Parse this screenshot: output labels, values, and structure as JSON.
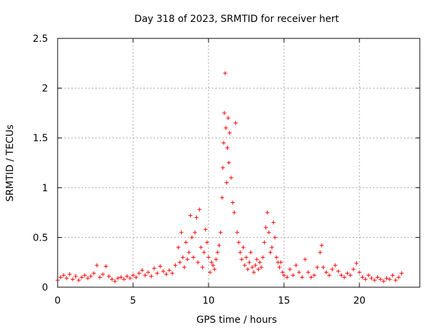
{
  "chart_data": {
    "type": "scatter",
    "title": "Day 318 of 2023, SRMTID for receiver hert",
    "xlabel": "GPS time / hours",
    "ylabel": "SRMTID / TECUs",
    "xlim": [
      0,
      24
    ],
    "ylim": [
      0,
      2.5
    ],
    "xticks": [
      0,
      5,
      10,
      15,
      20
    ],
    "yticks": [
      0,
      0.5,
      1,
      1.5,
      2,
      2.5
    ],
    "xtick_labels": [
      "0",
      "5",
      "10",
      "15",
      "20"
    ],
    "ytick_labels": [
      "0",
      "0.5",
      "1",
      "1.5",
      "2",
      "2.5"
    ],
    "grid": true,
    "marker": "+",
    "series_color": "#ff0000",
    "series": [
      {
        "name": "SRMTID",
        "points": [
          [
            0.0,
            0.07
          ],
          [
            0.2,
            0.1
          ],
          [
            0.4,
            0.12
          ],
          [
            0.6,
            0.09
          ],
          [
            0.8,
            0.13
          ],
          [
            1.0,
            0.08
          ],
          [
            1.2,
            0.11
          ],
          [
            1.4,
            0.07
          ],
          [
            1.6,
            0.1
          ],
          [
            1.8,
            0.12
          ],
          [
            2.0,
            0.09
          ],
          [
            2.2,
            0.11
          ],
          [
            2.4,
            0.14
          ],
          [
            2.6,
            0.22
          ],
          [
            2.8,
            0.1
          ],
          [
            3.0,
            0.13
          ],
          [
            3.2,
            0.21
          ],
          [
            3.4,
            0.11
          ],
          [
            3.6,
            0.08
          ],
          [
            3.8,
            0.06
          ],
          [
            4.0,
            0.09
          ],
          [
            4.2,
            0.1
          ],
          [
            4.4,
            0.08
          ],
          [
            4.6,
            0.11
          ],
          [
            4.8,
            0.09
          ],
          [
            5.0,
            0.12
          ],
          [
            5.2,
            0.1
          ],
          [
            5.4,
            0.14
          ],
          [
            5.6,
            0.17
          ],
          [
            5.8,
            0.12
          ],
          [
            6.0,
            0.15
          ],
          [
            6.2,
            0.11
          ],
          [
            6.4,
            0.19
          ],
          [
            6.6,
            0.14
          ],
          [
            6.8,
            0.21
          ],
          [
            7.0,
            0.16
          ],
          [
            7.2,
            0.13
          ],
          [
            7.4,
            0.17
          ],
          [
            7.6,
            0.14
          ],
          [
            7.8,
            0.22
          ],
          [
            8.0,
            0.4
          ],
          [
            8.1,
            0.25
          ],
          [
            8.2,
            0.55
          ],
          [
            8.3,
            0.3
          ],
          [
            8.4,
            0.2
          ],
          [
            8.5,
            0.45
          ],
          [
            8.6,
            0.28
          ],
          [
            8.7,
            0.35
          ],
          [
            8.8,
            0.72
          ],
          [
            8.9,
            0.5
          ],
          [
            9.0,
            0.3
          ],
          [
            9.1,
            0.55
          ],
          [
            9.2,
            0.7
          ],
          [
            9.3,
            0.25
          ],
          [
            9.4,
            0.78
          ],
          [
            9.5,
            0.4
          ],
          [
            9.6,
            0.2
          ],
          [
            9.7,
            0.35
          ],
          [
            9.8,
            0.58
          ],
          [
            9.9,
            0.45
          ],
          [
            10.0,
            0.3
          ],
          [
            10.1,
            0.15
          ],
          [
            10.2,
            0.25
          ],
          [
            10.3,
            0.22
          ],
          [
            10.4,
            0.18
          ],
          [
            10.5,
            0.28
          ],
          [
            10.6,
            0.35
          ],
          [
            10.7,
            0.42
          ],
          [
            10.8,
            0.55
          ],
          [
            10.9,
            0.9
          ],
          [
            10.95,
            1.2
          ],
          [
            11.0,
            1.45
          ],
          [
            11.05,
            1.75
          ],
          [
            11.1,
            2.15
          ],
          [
            11.15,
            1.6
          ],
          [
            11.2,
            1.05
          ],
          [
            11.25,
            1.4
          ],
          [
            11.3,
            1.7
          ],
          [
            11.35,
            1.25
          ],
          [
            11.4,
            1.55
          ],
          [
            11.5,
            1.1
          ],
          [
            11.6,
            0.85
          ],
          [
            11.7,
            0.75
          ],
          [
            11.8,
            1.65
          ],
          [
            11.9,
            0.55
          ],
          [
            12.0,
            0.45
          ],
          [
            12.1,
            0.35
          ],
          [
            12.2,
            0.28
          ],
          [
            12.3,
            0.4
          ],
          [
            12.4,
            0.22
          ],
          [
            12.5,
            0.3
          ],
          [
            12.6,
            0.18
          ],
          [
            12.7,
            0.25
          ],
          [
            12.8,
            0.35
          ],
          [
            12.9,
            0.2
          ],
          [
            13.0,
            0.15
          ],
          [
            13.1,
            0.22
          ],
          [
            13.2,
            0.28
          ],
          [
            13.3,
            0.18
          ],
          [
            13.4,
            0.25
          ],
          [
            13.5,
            0.2
          ],
          [
            13.6,
            0.3
          ],
          [
            13.7,
            0.45
          ],
          [
            13.8,
            0.6
          ],
          [
            13.9,
            0.75
          ],
          [
            14.0,
            0.55
          ],
          [
            14.1,
            0.35
          ],
          [
            14.2,
            0.4
          ],
          [
            14.3,
            0.65
          ],
          [
            14.4,
            0.5
          ],
          [
            14.5,
            0.3
          ],
          [
            14.6,
            0.25
          ],
          [
            14.7,
            0.2
          ],
          [
            14.8,
            0.25
          ],
          [
            14.9,
            0.15
          ],
          [
            15.0,
            0.12
          ],
          [
            15.2,
            0.1
          ],
          [
            15.4,
            0.18
          ],
          [
            15.6,
            0.12
          ],
          [
            15.8,
            0.22
          ],
          [
            16.0,
            0.15
          ],
          [
            16.2,
            0.1
          ],
          [
            16.4,
            0.28
          ],
          [
            16.6,
            0.15
          ],
          [
            16.8,
            0.1
          ],
          [
            17.0,
            0.12
          ],
          [
            17.2,
            0.2
          ],
          [
            17.4,
            0.35
          ],
          [
            17.5,
            0.42
          ],
          [
            17.6,
            0.2
          ],
          [
            17.8,
            0.15
          ],
          [
            18.0,
            0.12
          ],
          [
            18.2,
            0.18
          ],
          [
            18.4,
            0.22
          ],
          [
            18.6,
            0.16
          ],
          [
            18.8,
            0.12
          ],
          [
            19.0,
            0.1
          ],
          [
            19.2,
            0.14
          ],
          [
            19.4,
            0.12
          ],
          [
            19.6,
            0.18
          ],
          [
            19.8,
            0.24
          ],
          [
            20.0,
            0.15
          ],
          [
            20.2,
            0.1
          ],
          [
            20.4,
            0.08
          ],
          [
            20.6,
            0.12
          ],
          [
            20.8,
            0.09
          ],
          [
            21.0,
            0.07
          ],
          [
            21.2,
            0.1
          ],
          [
            21.4,
            0.08
          ],
          [
            21.6,
            0.06
          ],
          [
            21.8,
            0.09
          ],
          [
            22.0,
            0.08
          ],
          [
            22.2,
            0.12
          ],
          [
            22.4,
            0.07
          ],
          [
            22.6,
            0.1
          ],
          [
            22.8,
            0.14
          ]
        ]
      }
    ]
  }
}
